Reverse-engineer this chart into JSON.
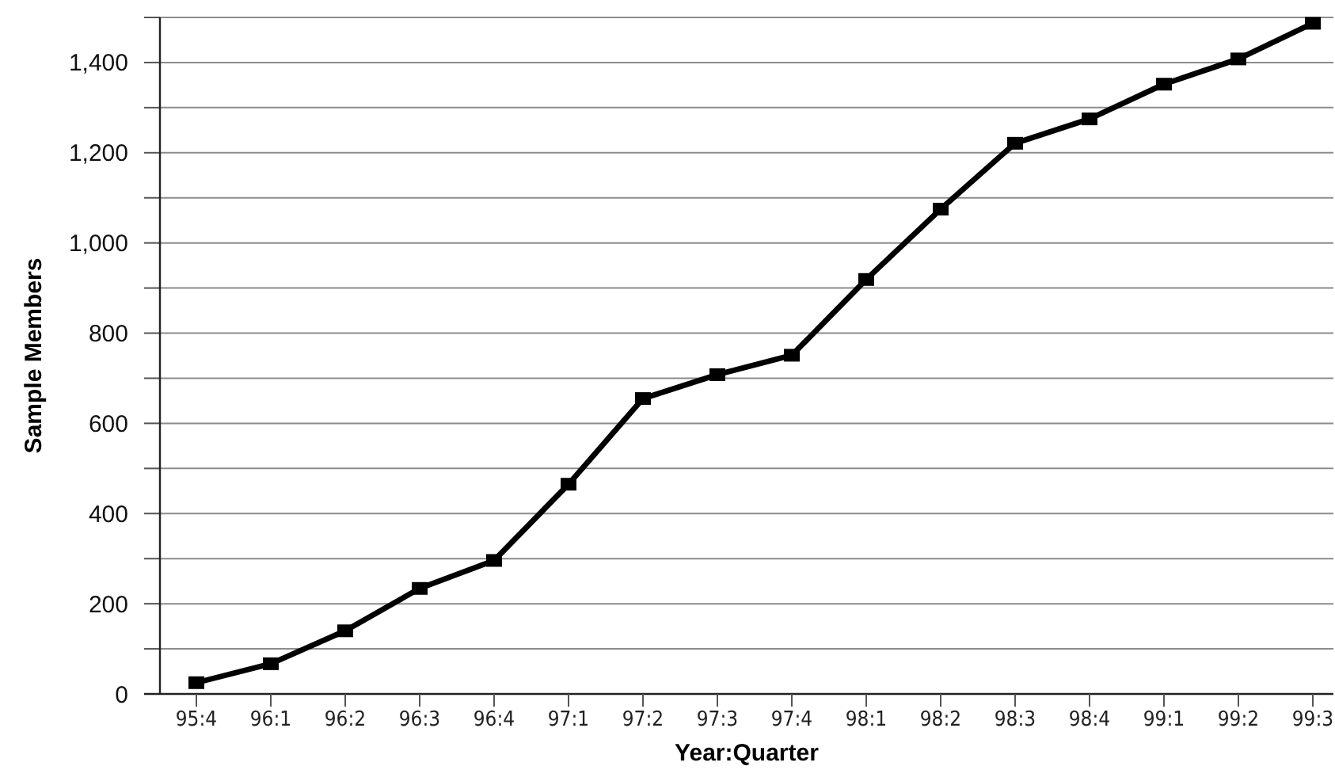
{
  "chart_data": {
    "type": "line",
    "xlabel": "Year:Quarter",
    "ylabel": "Sample Members",
    "categories": [
      "95:4",
      "96:1",
      "96:2",
      "96:3",
      "96:4",
      "97:1",
      "97:2",
      "97:3",
      "97:4",
      "98:1",
      "98:2",
      "98:3",
      "98:4",
      "99:1",
      "99:2",
      "99:3"
    ],
    "series": [
      {
        "color": "#000000",
        "values": [
          25,
          67,
          140,
          234,
          296,
          465,
          655,
          708,
          751,
          919,
          1075,
          1221,
          1275,
          1352,
          1408,
          1487
        ]
      }
    ],
    "ylim": [
      0,
      1500
    ],
    "yticks": [
      {
        "value": 0,
        "label": "0"
      },
      {
        "value": 100,
        "label": null
      },
      {
        "value": 200,
        "label": "200"
      },
      {
        "value": 300,
        "label": null
      },
      {
        "value": 400,
        "label": "400"
      },
      {
        "value": 500,
        "label": null
      },
      {
        "value": 600,
        "label": "600"
      },
      {
        "value": 700,
        "label": null
      },
      {
        "value": 800,
        "label": "800"
      },
      {
        "value": 900,
        "label": null
      },
      {
        "value": 1000,
        "label": "1,000"
      },
      {
        "value": 1100,
        "label": null
      },
      {
        "value": 1200,
        "label": "1,200"
      },
      {
        "value": 1300,
        "label": null
      },
      {
        "value": 1400,
        "label": "1,400"
      },
      {
        "value": 1500,
        "label": null
      }
    ],
    "grid": "y",
    "marker": "square",
    "line_style": "solid"
  }
}
